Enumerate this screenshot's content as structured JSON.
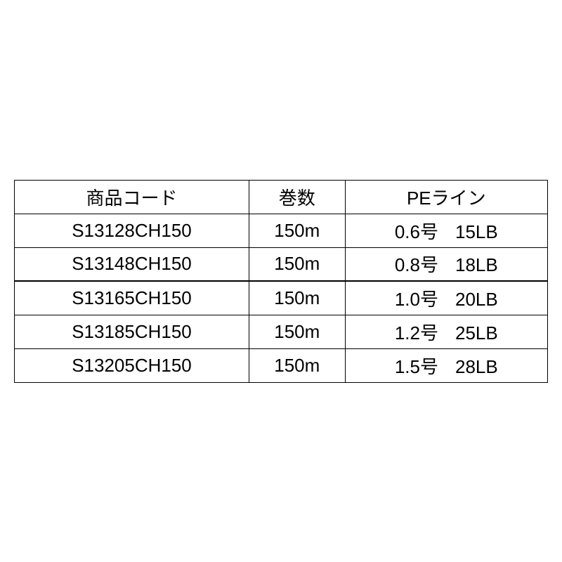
{
  "table": {
    "type": "table",
    "border_color": "#000000",
    "background_color": "#ffffff",
    "text_color": "#000000",
    "font_size_pt": 20,
    "columns": [
      {
        "key": "code",
        "label": "商品コード",
        "width_pct": 44,
        "align": "center"
      },
      {
        "key": "length",
        "label": "巻数",
        "width_pct": 18,
        "align": "center"
      },
      {
        "key": "pe",
        "label": "PEライン",
        "width_pct": 38,
        "align": "center"
      }
    ],
    "rows": [
      {
        "code": "S13128CH150",
        "length": "150m",
        "pe_gou": "0.6号",
        "pe_lb": "15LB",
        "heavy_top": false
      },
      {
        "code": "S13148CH150",
        "length": "150m",
        "pe_gou": "0.8号",
        "pe_lb": "18LB",
        "heavy_top": false
      },
      {
        "code": "S13165CH150",
        "length": "150m",
        "pe_gou": "1.0号",
        "pe_lb": "20LB",
        "heavy_top": true
      },
      {
        "code": "S13185CH150",
        "length": "150m",
        "pe_gou": "1.2号",
        "pe_lb": "25LB",
        "heavy_top": false
      },
      {
        "code": "S13205CH150",
        "length": "150m",
        "pe_gou": "1.5号",
        "pe_lb": "28LB",
        "heavy_top": false
      }
    ]
  }
}
